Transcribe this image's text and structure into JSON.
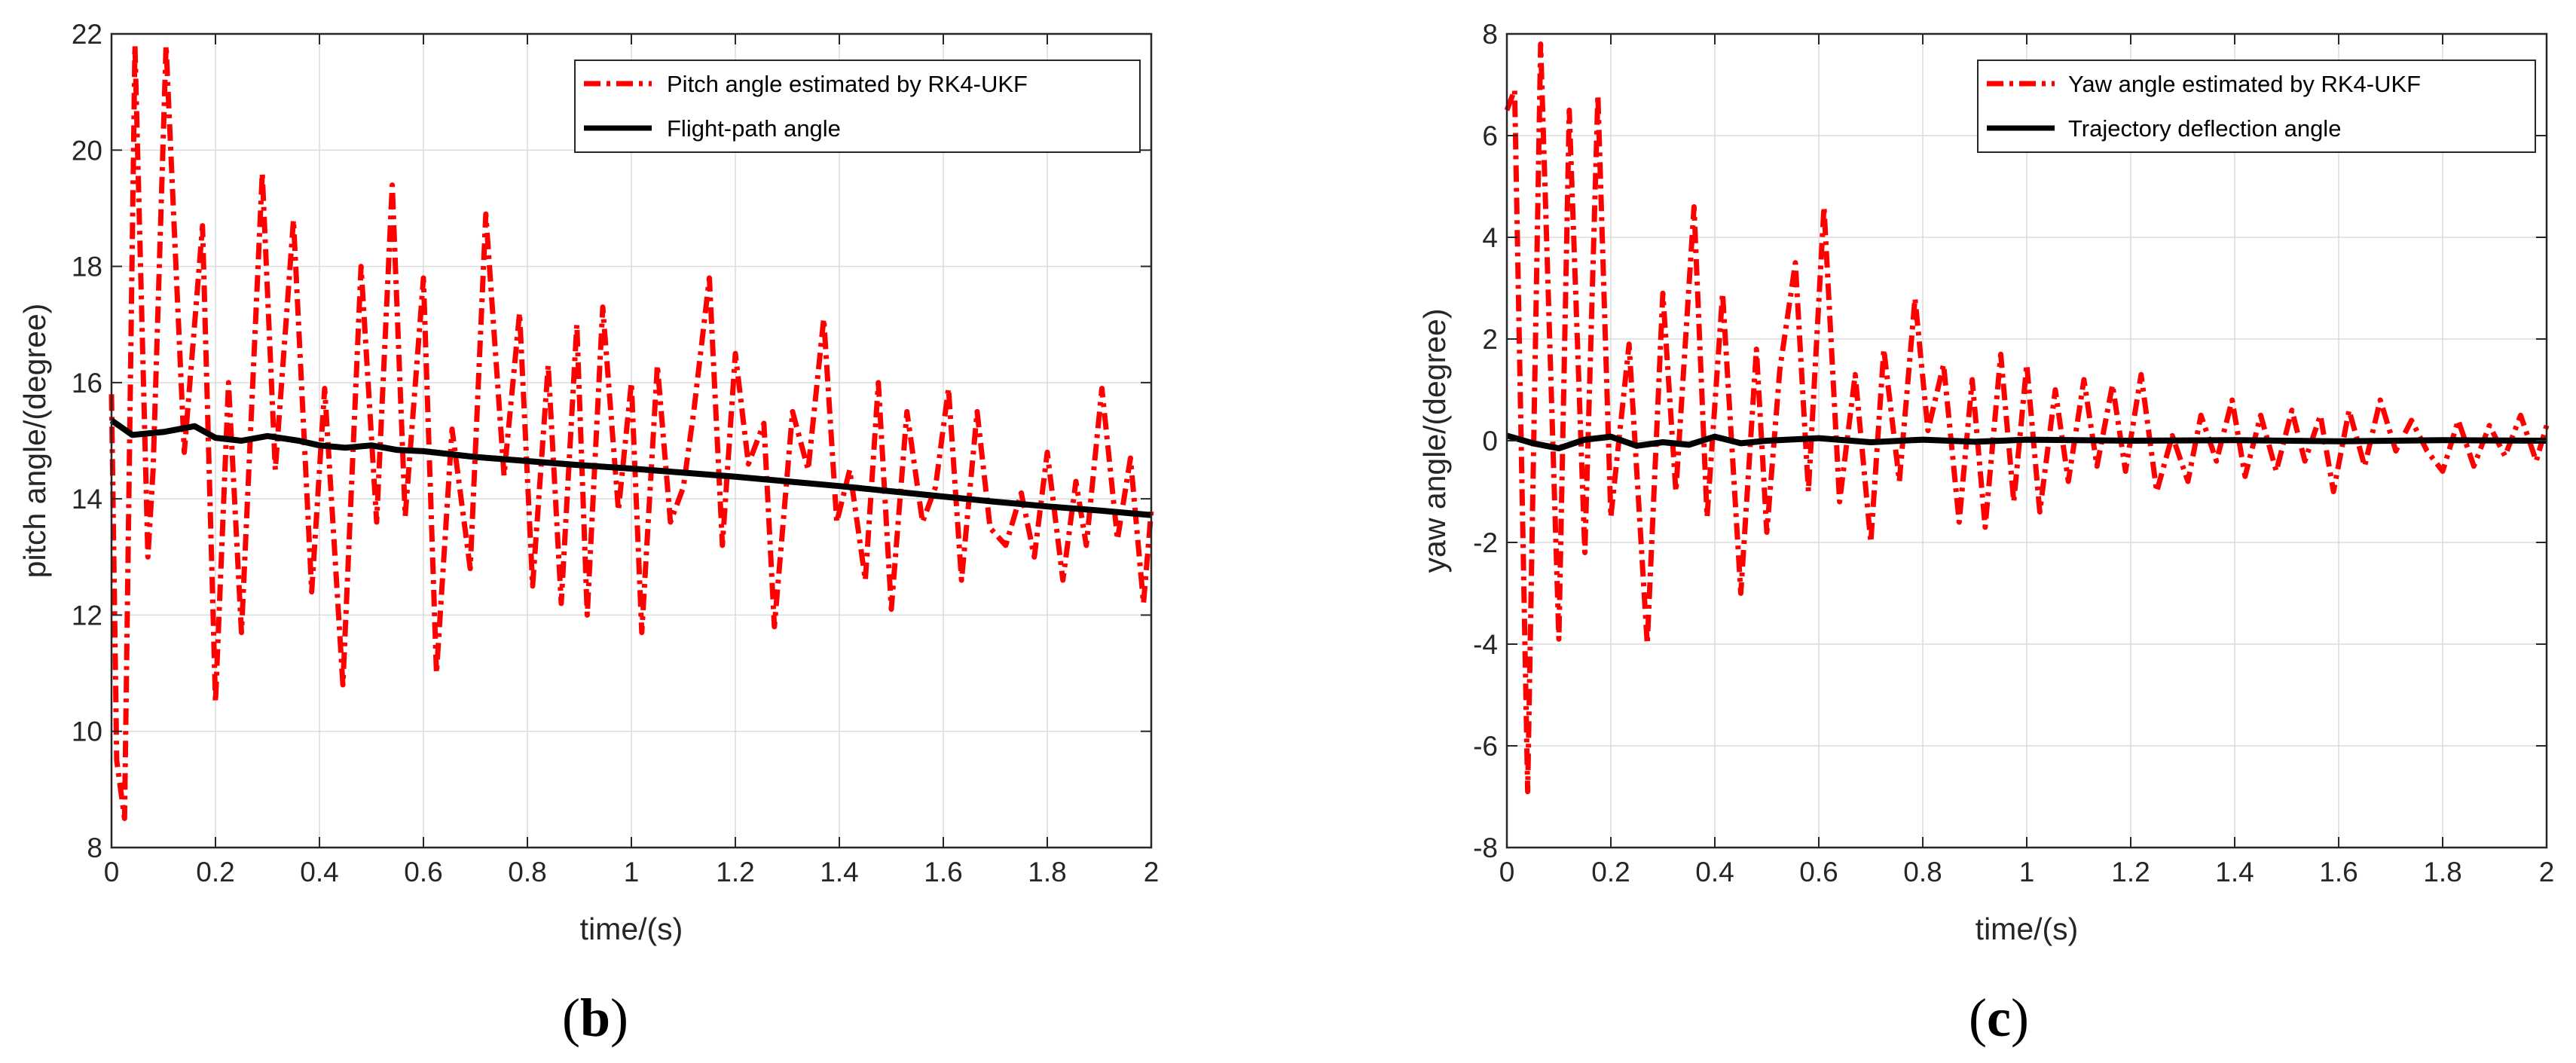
{
  "figure": {
    "panel_labels": [
      {
        "open": "(",
        "letter": "b",
        "close": ")"
      },
      {
        "open": "(",
        "letter": "c",
        "close": ")"
      }
    ]
  },
  "colors": {
    "estimate": "#ff0000",
    "reference": "#000000",
    "grid": "#dcdcdc",
    "axis": "#262626"
  },
  "chart_data": [
    {
      "type": "line",
      "panel": "b",
      "title": "",
      "xlabel": "time/(s)",
      "ylabel": "pitch angle/(degree)",
      "xlim": [
        0,
        2
      ],
      "ylim": [
        8,
        22
      ],
      "xticks": [
        0,
        0.2,
        0.4,
        0.6,
        0.8,
        1,
        1.2,
        1.4,
        1.6,
        1.8,
        2
      ],
      "xtick_labels": [
        "0",
        "0.2",
        "0.4",
        "0.6",
        "0.8",
        "1",
        "1.2",
        "1.4",
        "1.6",
        "1.8",
        "2"
      ],
      "yticks": [
        8,
        10,
        12,
        14,
        16,
        18,
        20,
        22
      ],
      "ytick_labels": [
        "8",
        "10",
        "12",
        "14",
        "16",
        "18",
        "20",
        "22"
      ],
      "grid": true,
      "legend_position": "top-right",
      "series": [
        {
          "name": "Pitch angle estimated by RK4-UKF",
          "style": "dash-dot",
          "color": "#ff0000",
          "x": [
            0,
            0.01,
            0.025,
            0.045,
            0.07,
            0.08,
            0.105,
            0.14,
            0.175,
            0.2,
            0.225,
            0.25,
            0.29,
            0.315,
            0.35,
            0.385,
            0.41,
            0.445,
            0.48,
            0.51,
            0.54,
            0.565,
            0.6,
            0.625,
            0.655,
            0.69,
            0.72,
            0.755,
            0.785,
            0.81,
            0.84,
            0.865,
            0.895,
            0.915,
            0.945,
            0.975,
            1.0,
            1.02,
            1.05,
            1.075,
            1.1,
            1.12,
            1.15,
            1.175,
            1.2,
            1.225,
            1.255,
            1.275,
            1.31,
            1.34,
            1.37,
            1.395,
            1.42,
            1.45,
            1.475,
            1.5,
            1.53,
            1.56,
            1.585,
            1.61,
            1.635,
            1.665,
            1.69,
            1.72,
            1.75,
            1.775,
            1.8,
            1.83,
            1.855,
            1.875,
            1.905,
            1.935,
            1.96,
            1.985,
            2.0
          ],
          "y": [
            15.8,
            9.5,
            8.5,
            21.8,
            13.0,
            14.5,
            21.8,
            14.8,
            18.7,
            10.5,
            16.0,
            11.7,
            19.6,
            14.5,
            18.8,
            12.4,
            15.9,
            10.8,
            18.0,
            13.6,
            19.4,
            13.7,
            17.8,
            11.0,
            15.2,
            12.8,
            18.9,
            14.4,
            17.2,
            12.5,
            16.3,
            12.2,
            17.0,
            12.0,
            17.3,
            13.8,
            16.0,
            11.7,
            16.3,
            13.6,
            14.2,
            15.5,
            17.8,
            13.2,
            16.5,
            14.6,
            15.3,
            11.8,
            15.5,
            14.5,
            17.1,
            13.6,
            14.5,
            12.6,
            16.0,
            12.1,
            15.5,
            13.6,
            14.2,
            15.9,
            12.6,
            15.5,
            13.5,
            13.2,
            14.1,
            13.0,
            14.8,
            12.6,
            14.3,
            13.2,
            15.9,
            13.3,
            14.7,
            12.2,
            13.8
          ]
        },
        {
          "name": "Flight-path angle",
          "style": "solid",
          "color": "#000000",
          "x": [
            0,
            0.04,
            0.1,
            0.16,
            0.2,
            0.25,
            0.3,
            0.36,
            0.4,
            0.45,
            0.5,
            0.55,
            0.6,
            0.7,
            0.8,
            0.9,
            1.0,
            1.1,
            1.2,
            1.3,
            1.4,
            1.5,
            1.6,
            1.7,
            1.8,
            1.9,
            2.0
          ],
          "y": [
            15.35,
            15.1,
            15.15,
            15.25,
            15.05,
            15.0,
            15.08,
            15.0,
            14.92,
            14.88,
            14.92,
            14.84,
            14.82,
            14.72,
            14.65,
            14.58,
            14.52,
            14.45,
            14.38,
            14.3,
            14.22,
            14.13,
            14.04,
            13.95,
            13.87,
            13.8,
            13.72
          ]
        }
      ]
    },
    {
      "type": "line",
      "panel": "c",
      "title": "",
      "xlabel": "time/(s)",
      "ylabel": "yaw angle/(degree)",
      "xlim": [
        0,
        2
      ],
      "ylim": [
        -8,
        8
      ],
      "xticks": [
        0,
        0.2,
        0.4,
        0.6,
        0.8,
        1,
        1.2,
        1.4,
        1.6,
        1.8,
        2
      ],
      "xtick_labels": [
        "0",
        "0.2",
        "0.4",
        "0.6",
        "0.8",
        "1",
        "1.2",
        "1.4",
        "1.6",
        "1.8",
        "2"
      ],
      "yticks": [
        -8,
        -6,
        -4,
        -2,
        0,
        2,
        4,
        6,
        8
      ],
      "ytick_labels": [
        "-8",
        "-6",
        "-4",
        "-2",
        "0",
        "2",
        "4",
        "6",
        "8"
      ],
      "grid": true,
      "legend_position": "top-right",
      "series": [
        {
          "name": "Yaw angle estimated by RK4-UKF",
          "style": "dash-dot",
          "color": "#ff0000",
          "x": [
            0,
            0.015,
            0.04,
            0.065,
            0.1,
            0.12,
            0.15,
            0.175,
            0.2,
            0.235,
            0.27,
            0.3,
            0.325,
            0.36,
            0.385,
            0.415,
            0.45,
            0.48,
            0.5,
            0.525,
            0.555,
            0.58,
            0.61,
            0.64,
            0.67,
            0.7,
            0.725,
            0.755,
            0.785,
            0.81,
            0.84,
            0.87,
            0.895,
            0.92,
            0.95,
            0.975,
            1.0,
            1.025,
            1.055,
            1.08,
            1.11,
            1.135,
            1.165,
            1.19,
            1.22,
            1.25,
            1.28,
            1.31,
            1.335,
            1.365,
            1.395,
            1.42,
            1.45,
            1.48,
            1.51,
            1.535,
            1.565,
            1.59,
            1.62,
            1.65,
            1.68,
            1.71,
            1.74,
            1.77,
            1.8,
            1.83,
            1.86,
            1.89,
            1.92,
            1.95,
            1.98,
            2.0
          ],
          "y": [
            6.5,
            6.9,
            -6.9,
            7.8,
            -3.9,
            6.5,
            -2.2,
            6.8,
            -1.5,
            1.9,
            -4.0,
            2.9,
            -1.0,
            4.6,
            -1.5,
            2.9,
            -3.0,
            1.8,
            -1.8,
            1.4,
            3.5,
            -1.0,
            4.6,
            -1.2,
            1.3,
            -2.0,
            1.8,
            -0.8,
            2.8,
            0.2,
            1.5,
            -1.6,
            1.2,
            -1.7,
            1.7,
            -1.2,
            1.5,
            -1.4,
            1.0,
            -0.8,
            1.2,
            -0.5,
            1.1,
            -0.6,
            1.3,
            -1.0,
            0.1,
            -0.8,
            0.5,
            -0.4,
            0.8,
            -0.7,
            0.5,
            -0.6,
            0.6,
            -0.4,
            0.5,
            -1.0,
            0.6,
            -0.5,
            0.8,
            -0.2,
            0.4,
            -0.2,
            -0.6,
            0.4,
            -0.5,
            0.3,
            -0.3,
            0.5,
            -0.4,
            0.3
          ]
        },
        {
          "name": "Trajectory deflection angle",
          "style": "solid",
          "color": "#000000",
          "x": [
            0,
            0.05,
            0.1,
            0.15,
            0.2,
            0.25,
            0.3,
            0.35,
            0.4,
            0.45,
            0.5,
            0.6,
            0.7,
            0.8,
            0.9,
            1.0,
            1.2,
            1.4,
            1.6,
            1.8,
            2.0
          ],
          "y": [
            0.1,
            -0.05,
            -0.15,
            0.02,
            0.08,
            -0.1,
            -0.03,
            -0.08,
            0.08,
            -0.05,
            0.0,
            0.05,
            -0.03,
            0.02,
            -0.02,
            0.02,
            0.0,
            0.01,
            -0.01,
            0.01,
            0.0
          ]
        }
      ]
    }
  ]
}
